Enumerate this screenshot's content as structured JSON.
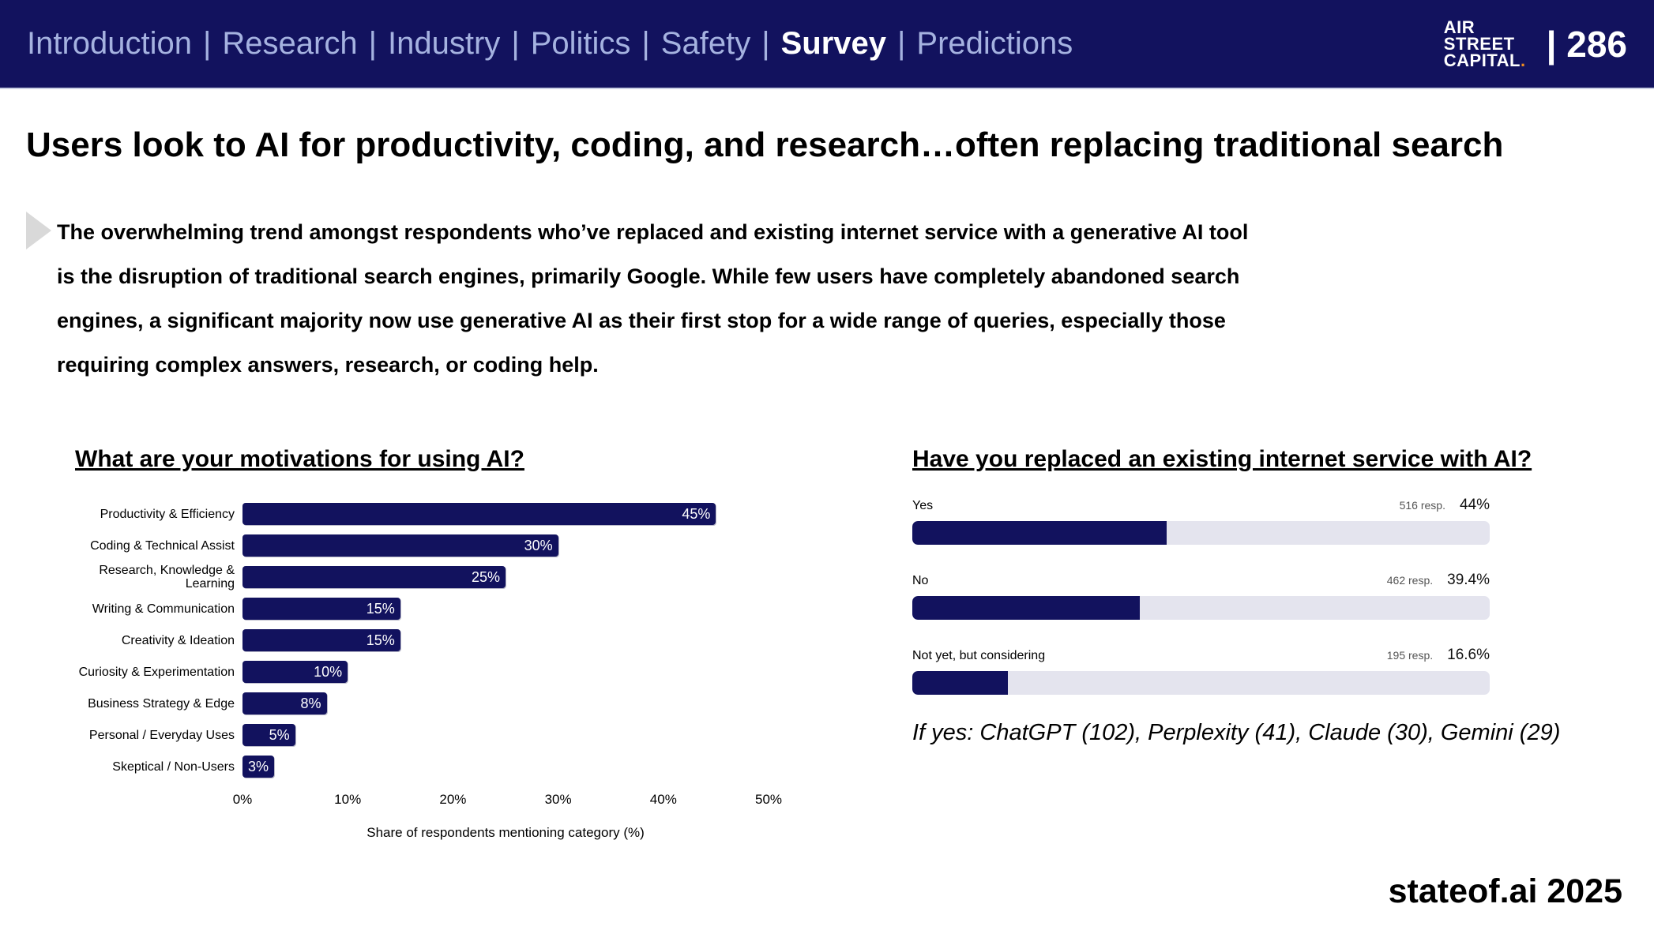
{
  "colors": {
    "navy": "#12125E",
    "nav_inactive_text": "#A5B2E0",
    "bar_track": "#E4E4EE",
    "bullet_gray": "#D9D9D9",
    "logo_dot_orange": "#F08C1E"
  },
  "nav": {
    "items": [
      {
        "label": "Introduction",
        "active": false
      },
      {
        "label": "Research",
        "active": false
      },
      {
        "label": "Industry",
        "active": false
      },
      {
        "label": "Politics",
        "active": false
      },
      {
        "label": "Safety",
        "active": false
      },
      {
        "label": "Survey",
        "active": true
      },
      {
        "label": "Predictions",
        "active": false
      }
    ],
    "separator": "|",
    "logo": {
      "lines": [
        "AIR",
        "STREET",
        "CAPITAL"
      ],
      "dot": "."
    },
    "page_number": "| 286"
  },
  "headline": "Users look to AI for productivity, coding, and research…often replacing traditional search",
  "bullet_text": "The overwhelming trend amongst respondents who’ve replaced and existing internet service with a generative AI tool is the disruption of traditional search engines, primarily Google. While few users have completely abandoned search engines, a significant majority now use generative AI as their first stop for a wide range of queries, especially those requiring complex answers, research, or coding help.",
  "footnote": "If yes: ChatGPT (102), Perplexity (41), Claude (30), Gemini (29)",
  "footer_brand": "stateof.ai 2025",
  "chart_data": [
    {
      "type": "bar",
      "orientation": "horizontal",
      "title": "What are your motivations for using AI?",
      "categories": [
        "Productivity & Efficiency",
        "Coding & Technical Assist",
        "Research, Knowledge & Learning",
        "Writing & Communication",
        "Creativity & Ideation",
        "Curiosity & Experimentation",
        "Business Strategy & Edge",
        "Personal / Everyday Uses",
        "Skeptical / Non-Users"
      ],
      "values": [
        45,
        30,
        25,
        15,
        15,
        10,
        8,
        5,
        3
      ],
      "value_labels": [
        "45%",
        "30%",
        "25%",
        "15%",
        "15%",
        "10%",
        "8%",
        "5%",
        "3%"
      ],
      "xlabel": "Share of respondents mentioning category (%)",
      "xlim": [
        0,
        50
      ],
      "xticks": [
        "0%",
        "10%",
        "20%",
        "30%",
        "40%",
        "50%"
      ],
      "bar_color": "#12125E",
      "grid": false,
      "legend": false
    },
    {
      "type": "bar",
      "orientation": "horizontal",
      "title": "Have you replaced an existing internet service with AI?",
      "categories": [
        "Yes",
        "No",
        "Not yet, but considering"
      ],
      "values": [
        44,
        39.4,
        16.6
      ],
      "value_labels": [
        "44%",
        "39.4%",
        "16.6%"
      ],
      "responses": [
        "516 resp.",
        "462 resp.",
        "195 resp."
      ],
      "xlim": [
        0,
        100
      ],
      "bar_color": "#12125E",
      "track_color": "#E4E4EE",
      "grid": false,
      "legend": false
    }
  ]
}
